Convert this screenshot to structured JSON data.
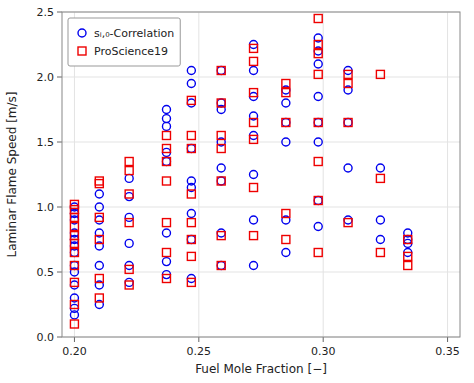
{
  "chart_data": {
    "type": "scatter",
    "xlabel": "Fuel Mole Fraction [−]",
    "ylabel": "Laminar Flame Speed [m/s]",
    "xlim": [
      0.195,
      0.355
    ],
    "ylim": [
      0.0,
      2.5
    ],
    "xticks": [
      {
        "value": 0.2,
        "label": "0.20"
      },
      0.25,
      {
        "value": 0.3,
        "label": "0.30"
      },
      0.35
    ],
    "yticks": [
      {
        "value": 0.0,
        "label": "0.0"
      },
      0.5,
      {
        "value": 1.0,
        "label": "1.0"
      },
      1.5,
      {
        "value": 2.0,
        "label": "2.0"
      },
      2.5
    ],
    "grid": true,
    "legend": "upper left",
    "series": [
      {
        "name": "sᵢ,₀-Correlation",
        "color": "#0000ee",
        "marker": "circle",
        "x": [
          0.2,
          0.2,
          0.2,
          0.2,
          0.2,
          0.2,
          0.2,
          0.2,
          0.2,
          0.2,
          0.2,
          0.2,
          0.2,
          0.21,
          0.21,
          0.21,
          0.21,
          0.21,
          0.21,
          0.21,
          0.21,
          0.222,
          0.222,
          0.222,
          0.222,
          0.222,
          0.222,
          0.237,
          0.237,
          0.237,
          0.237,
          0.237,
          0.237,
          0.237,
          0.237,
          0.247,
          0.247,
          0.247,
          0.247,
          0.247,
          0.247,
          0.247,
          0.247,
          0.247,
          0.259,
          0.259,
          0.259,
          0.259,
          0.259,
          0.259,
          0.259,
          0.259,
          0.272,
          0.272,
          0.272,
          0.272,
          0.272,
          0.272,
          0.272,
          0.272,
          0.285,
          0.285,
          0.285,
          0.285,
          0.285,
          0.285,
          0.298,
          0.298,
          0.298,
          0.298,
          0.298,
          0.298,
          0.298,
          0.298,
          0.31,
          0.31,
          0.31,
          0.31,
          0.31,
          0.323,
          0.323,
          0.323,
          0.334,
          0.334,
          0.334,
          0.334
        ],
        "values": [
          1.0,
          0.95,
          0.9,
          0.8,
          0.75,
          0.7,
          0.65,
          0.55,
          0.5,
          0.4,
          0.3,
          0.22,
          0.17,
          1.1,
          1.0,
          0.9,
          0.8,
          0.7,
          0.55,
          0.4,
          0.25,
          1.22,
          1.08,
          0.92,
          0.72,
          0.55,
          0.42,
          1.75,
          1.68,
          1.62,
          1.42,
          1.35,
          0.8,
          0.58,
          0.48,
          2.05,
          1.95,
          1.8,
          1.45,
          1.2,
          1.15,
          0.95,
          0.75,
          0.45,
          2.05,
          1.8,
          1.75,
          1.5,
          1.3,
          1.2,
          0.8,
          0.55,
          2.25,
          2.05,
          1.85,
          1.7,
          1.55,
          1.25,
          0.9,
          0.55,
          1.9,
          1.8,
          1.65,
          1.5,
          0.9,
          0.65,
          2.3,
          2.2,
          2.1,
          1.85,
          1.65,
          1.5,
          1.05,
          0.85,
          2.05,
          1.9,
          1.65,
          1.3,
          0.9,
          1.3,
          0.9,
          0.75,
          0.8,
          0.75,
          0.72,
          0.65
        ]
      },
      {
        "name": "ProScience19",
        "color": "#ee0000",
        "marker": "square",
        "x": [
          0.2,
          0.2,
          0.2,
          0.2,
          0.2,
          0.2,
          0.2,
          0.2,
          0.2,
          0.2,
          0.2,
          0.21,
          0.21,
          0.21,
          0.21,
          0.21,
          0.21,
          0.222,
          0.222,
          0.222,
          0.222,
          0.222,
          0.222,
          0.237,
          0.237,
          0.237,
          0.237,
          0.237,
          0.237,
          0.237,
          0.247,
          0.247,
          0.247,
          0.247,
          0.247,
          0.247,
          0.247,
          0.247,
          0.259,
          0.259,
          0.259,
          0.259,
          0.259,
          0.259,
          0.259,
          0.272,
          0.272,
          0.272,
          0.272,
          0.272,
          0.272,
          0.272,
          0.285,
          0.285,
          0.285,
          0.285,
          0.285,
          0.298,
          0.298,
          0.298,
          0.298,
          0.298,
          0.298,
          0.298,
          0.298,
          0.31,
          0.31,
          0.31,
          0.31,
          0.323,
          0.323,
          0.323,
          0.334,
          0.334,
          0.334
        ],
        "values": [
          1.02,
          0.98,
          0.92,
          0.85,
          0.78,
          0.72,
          0.65,
          0.55,
          0.42,
          0.25,
          0.1,
          1.2,
          1.18,
          0.92,
          0.75,
          0.45,
          0.3,
          1.35,
          1.28,
          1.1,
          0.88,
          0.52,
          0.4,
          1.55,
          1.45,
          1.35,
          1.2,
          0.88,
          0.65,
          0.45,
          1.82,
          1.55,
          1.45,
          1.1,
          0.88,
          0.75,
          0.62,
          0.42,
          2.05,
          1.8,
          1.55,
          1.45,
          1.2,
          0.78,
          0.55,
          2.22,
          2.12,
          1.88,
          1.65,
          1.52,
          1.15,
          0.78,
          1.95,
          1.88,
          1.65,
          0.95,
          0.75,
          2.45,
          2.25,
          2.18,
          2.02,
          1.65,
          1.35,
          1.05,
          0.65,
          2.02,
          1.95,
          1.65,
          0.88,
          2.02,
          1.22,
          0.65,
          0.75,
          0.62,
          0.55
        ]
      }
    ]
  }
}
